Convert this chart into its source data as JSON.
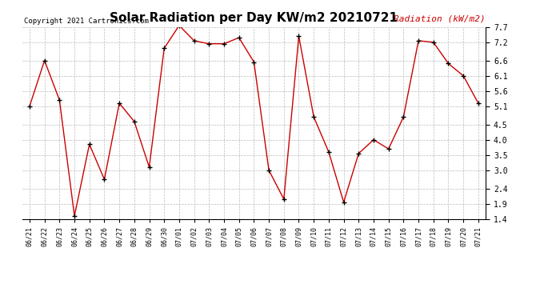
{
  "title": "Solar Radiation per Day KW/m2 20210721",
  "copyright_text": "Copyright 2021 Cartronics.com",
  "legend_label": "Radiation (kW/m2)",
  "dates": [
    "06/21",
    "06/22",
    "06/23",
    "06/24",
    "06/25",
    "06/26",
    "06/27",
    "06/28",
    "06/29",
    "06/30",
    "07/01",
    "07/02",
    "07/03",
    "07/04",
    "07/05",
    "07/06",
    "07/07",
    "07/08",
    "07/09",
    "07/10",
    "07/11",
    "07/12",
    "07/13",
    "07/14",
    "07/15",
    "07/16",
    "07/17",
    "07/18",
    "07/19",
    "07/20",
    "07/21"
  ],
  "values": [
    5.1,
    6.6,
    5.3,
    1.5,
    3.85,
    2.7,
    5.2,
    4.6,
    3.1,
    7.0,
    7.75,
    7.25,
    7.15,
    7.15,
    7.35,
    6.55,
    3.0,
    2.05,
    7.4,
    4.75,
    3.6,
    1.95,
    3.55,
    4.0,
    3.7,
    4.75,
    7.25,
    7.2,
    6.5,
    6.1,
    5.2
  ],
  "line_color": "#cc0000",
  "marker_color": "#000000",
  "background_color": "#ffffff",
  "grid_color": "#bbbbbb",
  "title_fontsize": 11,
  "copyright_fontsize": 6.5,
  "legend_fontsize": 8,
  "ylim": [
    1.4,
    7.7
  ],
  "yticks": [
    1.4,
    1.9,
    2.4,
    3.0,
    3.5,
    4.0,
    4.5,
    5.1,
    5.6,
    6.1,
    6.6,
    7.2,
    7.7
  ]
}
